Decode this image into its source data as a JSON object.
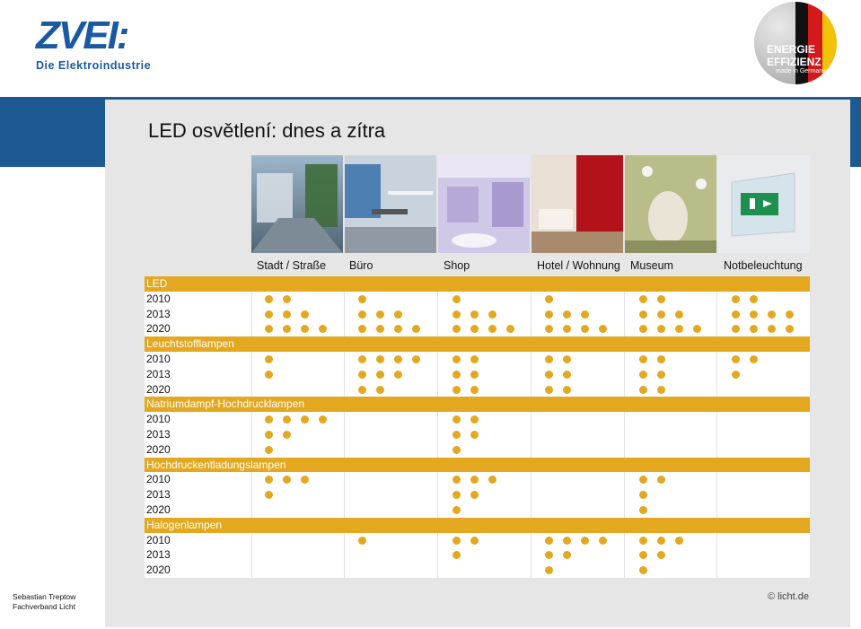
{
  "logo": {
    "name": "ZVEI:",
    "subtitle": "Die Elektroindustrie"
  },
  "badge": {
    "line1": "ENERGIE",
    "line2": "EFFIZIENZ",
    "line3": "made in Germany"
  },
  "title": "LED osvětlení: dnes a zítra",
  "columns": [
    "Stadt / Straße",
    "Büro",
    "Shop",
    "Hotel / Wohnung",
    "Museum",
    "Notbeleuchtung"
  ],
  "groups": [
    {
      "name": "LED",
      "rows": [
        {
          "year": "2010",
          "counts": [
            2,
            1,
            1,
            1,
            2,
            2
          ]
        },
        {
          "year": "2013",
          "counts": [
            3,
            3,
            3,
            3,
            3,
            4
          ]
        },
        {
          "year": "2020",
          "counts": [
            4,
            4,
            4,
            4,
            4,
            4
          ]
        }
      ]
    },
    {
      "name": "Leuchtstofflampen",
      "rows": [
        {
          "year": "2010",
          "counts": [
            1,
            4,
            2,
            2,
            2,
            2
          ]
        },
        {
          "year": "2013",
          "counts": [
            1,
            3,
            2,
            2,
            2,
            1
          ]
        },
        {
          "year": "2020",
          "counts": [
            0,
            2,
            2,
            2,
            2,
            0
          ]
        }
      ]
    },
    {
      "name": "Natriumdampf-Hochdrucklampen",
      "rows": [
        {
          "year": "2010",
          "counts": [
            4,
            0,
            2,
            0,
            0,
            0
          ]
        },
        {
          "year": "2013",
          "counts": [
            2,
            0,
            2,
            0,
            0,
            0
          ]
        },
        {
          "year": "2020",
          "counts": [
            1,
            0,
            1,
            0,
            0,
            0
          ]
        }
      ]
    },
    {
      "name": "Hochdruckentladungslampen",
      "rows": [
        {
          "year": "2010",
          "counts": [
            3,
            0,
            3,
            0,
            2,
            0
          ]
        },
        {
          "year": "2013",
          "counts": [
            1,
            0,
            2,
            0,
            1,
            0
          ]
        },
        {
          "year": "2020",
          "counts": [
            0,
            0,
            1,
            0,
            1,
            0
          ]
        }
      ]
    },
    {
      "name": "Halogenlampen",
      "rows": [
        {
          "year": "2010",
          "counts": [
            0,
            1,
            2,
            4,
            3,
            0
          ]
        },
        {
          "year": "2013",
          "counts": [
            0,
            0,
            1,
            2,
            2,
            0
          ]
        },
        {
          "year": "2020",
          "counts": [
            0,
            0,
            0,
            1,
            1,
            0
          ]
        }
      ]
    }
  ],
  "footer": {
    "author": "Sebastian Treptow",
    "org": "Fachverband Licht",
    "copyright": "© licht.de"
  },
  "colors": {
    "accent": "#e3a81f",
    "band": "#1d5a92",
    "brand": "#1a5aa2"
  }
}
